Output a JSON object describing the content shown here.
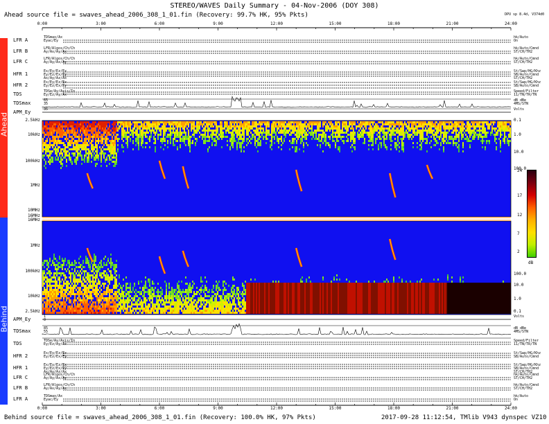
{
  "title": "STEREO/WAVES Daily Summary - 04-Nov-2006 (DOY 308)",
  "ahead_source": "Ahead source file = swaves_ahead_2006_308_1_01.fin (Recovery: 99.7% HK,  95% Pkts)",
  "behind_source": "Behind source file = swaves_ahead_2006_308_1_01.fin (Recovery: 100.0% HK,  97% Pkts)",
  "footer_right": "2017-09-28 11:12:54, TMlib V943 dynspec VZ10",
  "dpu_info": "DPU sp 8.4d, V374d0",
  "time_ticks": [
    "0:00",
    "3:00",
    "6:00",
    "9:00",
    "12:00",
    "15:00",
    "18:00",
    "21:00",
    "24:00"
  ],
  "side_labels": {
    "ahead": "Ahead",
    "behind": "Behind"
  },
  "colors": {
    "ahead": "#ff2a1a",
    "behind": "#1a3cff",
    "spectrum_bg": "#1010f0"
  },
  "ahead_rows": [
    {
      "label": "LFR A",
      "left": [
        "TDSmax/Ax",
        "Eyac/Ey"
      ],
      "right": [
        "hk/Auto",
        "On"
      ]
    },
    {
      "label": "LFR B",
      "left": [
        "LFR/Algos/Ch/Ch",
        "Ay/Ax/Ay/Ax"
      ],
      "right": [
        "hk/Auto/Cmnd",
        "ST/CH/TH2"
      ]
    },
    {
      "label": "LFR C",
      "left": [
        "LFR/Algos/Ch/Ch",
        "Ay/Ay/Ax/Ay"
      ],
      "right": [
        "hk/Auto/Cmnd",
        "ST/CH/TH2"
      ]
    },
    {
      "label": "HFR 1",
      "left": [
        "Ex/Ey/Ez/Ex",
        "Ey/Ez/Ex/Ey",
        "Ax/Ay/Az/Ax"
      ],
      "right": [
        "St/Swp/HG/Khz",
        "SB/Auto/Cmnd",
        "ST/CH/TH2"
      ]
    },
    {
      "label": "HFR 2",
      "left": [
        "Ex/Ey/Ez/Ex",
        "Ey/Ez/Ex/Ey"
      ],
      "right": [
        "St/Swp/HG/Khz",
        "SB/Auto/Cmnd"
      ]
    },
    {
      "label": "TDS",
      "left": [
        "TDSe/Ay/Axis/In",
        "Ey/Ez/Ay/Ax"
      ],
      "right": [
        "Speed/Filter",
        "11/TN/TR/TN"
      ]
    },
    {
      "label": "TDSmax",
      "left": [
        "65",
        "35"
      ],
      "right": [
        "dB dBe",
        "4MS/STN"
      ]
    },
    {
      "label": "APM_Ey",
      "left": [
        "35"
      ],
      "right": [
        "Volts"
      ]
    }
  ],
  "behind_rows": [
    {
      "label": "APM_Ey",
      "left": [
        "1",
        "0"
      ],
      "right": [
        "Volts"
      ]
    },
    {
      "label": "TDSmax",
      "left": [
        "85",
        "55"
      ],
      "right": [
        "dB dBe",
        "4MS/STN"
      ]
    },
    {
      "label": "TDS",
      "left": [
        "TDSe/Ay/Axis/In",
        "Ey/Ez/Ay/Ax"
      ],
      "right": [
        "Speed/Filter",
        "11/TN/TR/TN"
      ]
    },
    {
      "label": "HFR 2",
      "left": [
        "Ex/Ey/Ez/Ex",
        "Ey/Ez/Ex/Ey"
      ],
      "right": [
        "St/Swp/HG/Khz",
        "SB/Auto/Cmnd"
      ]
    },
    {
      "label": "HFR 1",
      "left": [
        "Ex/Ey/Ez/Ex",
        "Ey/Ez/Ex/Ey",
        "Ax/Ay/Az/Ax"
      ],
      "right": [
        "St/Swp/HG/Khz",
        "SB/Auto/Cmnd",
        "ST/CH/TH2"
      ]
    },
    {
      "label": "LFR C",
      "left": [
        "LFR/Algos/Ch/Ch",
        "Ay/Ay/Ax/Ay"
      ],
      "right": [
        "hk/Auto/Cmnd",
        "ST/CH/TH2"
      ]
    },
    {
      "label": "LFR B",
      "left": [
        "LFR/Algos/Ch/Ch",
        "Ay/Ax/Ay/Ax"
      ],
      "right": [
        "hk/Auto/Cmnd",
        "ST/CH/TH2"
      ]
    },
    {
      "label": "LFR A",
      "left": [
        "TDSmax/Ax",
        "Eyac/Ey"
      ],
      "right": [
        "hk/Auto",
        "On"
      ]
    }
  ],
  "ahead_freq_labels": [
    "2.5kHz",
    "10kHz",
    "100kHz",
    "1MHz",
    "10MHz",
    "16MHz"
  ],
  "behind_freq_labels": [
    "16MHz",
    "1MHz",
    "100kHz",
    "10kHz",
    "2.5kHz"
  ],
  "ahead_right_labels": [
    "0.1",
    "1.0",
    "10.0",
    "100.0"
  ],
  "behind_right_labels": [
    "100.0",
    "10.0",
    "1.0",
    "0.1"
  ],
  "colorbar": {
    "ticks": [
      "24",
      "17",
      "12",
      "7",
      "2"
    ],
    "unit": "dB"
  }
}
